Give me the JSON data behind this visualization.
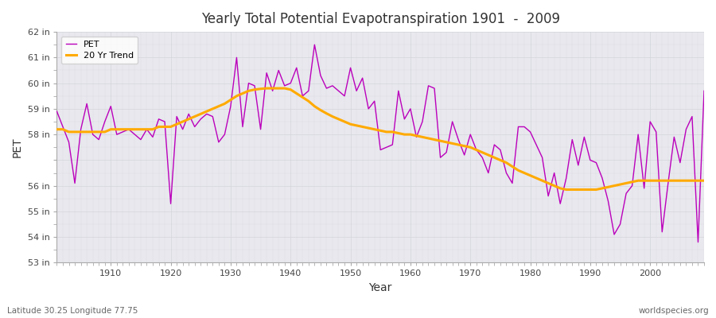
{
  "title": "Yearly Total Potential Evapotranspiration 1901  -  2009",
  "xlabel": "Year",
  "ylabel": "PET",
  "footnote_left": "Latitude 30.25 Longitude 77.75",
  "footnote_right": "worldspecies.org",
  "pet_color": "#bb00bb",
  "trend_color": "#ffaa00",
  "plot_bg_color": "#e8e8ee",
  "fig_bg_color": "#ffffff",
  "grid_color": "#d0d0d8",
  "ylim": [
    53,
    62
  ],
  "yticks": [
    53,
    54,
    55,
    56,
    57,
    58,
    59,
    60,
    61,
    62
  ],
  "ytick_labels": [
    "53 in",
    "54 in",
    "55 in",
    "56 in",
    "",
    "58 in",
    "59 in",
    "60 in",
    "61 in",
    "62 in"
  ],
  "xlim": [
    1901,
    2009
  ],
  "xticks": [
    1910,
    1920,
    1930,
    1940,
    1950,
    1960,
    1970,
    1980,
    1990,
    2000
  ],
  "years": [
    1901,
    1902,
    1903,
    1904,
    1905,
    1906,
    1907,
    1908,
    1909,
    1910,
    1911,
    1912,
    1913,
    1914,
    1915,
    1916,
    1917,
    1918,
    1919,
    1920,
    1921,
    1922,
    1923,
    1924,
    1925,
    1926,
    1927,
    1928,
    1929,
    1930,
    1931,
    1932,
    1933,
    1934,
    1935,
    1936,
    1937,
    1938,
    1939,
    1940,
    1941,
    1942,
    1943,
    1944,
    1945,
    1946,
    1947,
    1948,
    1949,
    1950,
    1951,
    1952,
    1953,
    1954,
    1955,
    1956,
    1957,
    1958,
    1959,
    1960,
    1961,
    1962,
    1963,
    1964,
    1965,
    1966,
    1967,
    1968,
    1969,
    1970,
    1971,
    1972,
    1973,
    1974,
    1975,
    1976,
    1977,
    1978,
    1979,
    1980,
    1981,
    1982,
    1983,
    1984,
    1985,
    1986,
    1987,
    1988,
    1989,
    1990,
    1991,
    1992,
    1993,
    1994,
    1995,
    1996,
    1997,
    1998,
    1999,
    2000,
    2001,
    2002,
    2003,
    2004,
    2005,
    2006,
    2007,
    2008,
    2009
  ],
  "pet": [
    58.9,
    58.3,
    57.7,
    56.1,
    58.2,
    59.2,
    58.0,
    57.8,
    58.5,
    59.1,
    58.0,
    58.1,
    58.2,
    58.0,
    57.8,
    58.2,
    57.9,
    58.6,
    58.5,
    55.3,
    58.7,
    58.2,
    58.8,
    58.3,
    58.6,
    58.8,
    58.7,
    57.7,
    58.0,
    59.1,
    61.0,
    58.3,
    60.0,
    59.9,
    58.2,
    60.4,
    59.7,
    60.5,
    59.9,
    60.0,
    60.6,
    59.5,
    59.7,
    61.5,
    60.3,
    59.8,
    59.9,
    59.7,
    59.5,
    60.6,
    59.7,
    60.2,
    59.0,
    59.3,
    57.4,
    57.5,
    57.6,
    59.7,
    58.6,
    59.0,
    57.9,
    58.5,
    59.9,
    59.8,
    57.1,
    57.3,
    58.5,
    57.8,
    57.2,
    58.0,
    57.4,
    57.1,
    56.5,
    57.6,
    57.4,
    56.5,
    56.1,
    58.3,
    58.3,
    58.1,
    57.6,
    57.1,
    55.6,
    56.5,
    55.3,
    56.3,
    57.8,
    56.8,
    57.9,
    57.0,
    56.9,
    56.3,
    55.4,
    54.1,
    54.5,
    55.7,
    56.0,
    58.0,
    55.9,
    58.5,
    58.1,
    54.2,
    56.1,
    57.9,
    56.9,
    58.2,
    58.7,
    53.8,
    59.7
  ],
  "trend": [
    58.2,
    58.2,
    58.1,
    58.1,
    58.1,
    58.1,
    58.1,
    58.1,
    58.1,
    58.2,
    58.2,
    58.2,
    58.2,
    58.2,
    58.2,
    58.2,
    58.2,
    58.3,
    58.3,
    58.3,
    58.4,
    58.5,
    58.6,
    58.7,
    58.8,
    58.9,
    59.0,
    59.1,
    59.2,
    59.35,
    59.5,
    59.6,
    59.7,
    59.75,
    59.78,
    59.8,
    59.8,
    59.8,
    59.8,
    59.75,
    59.6,
    59.45,
    59.3,
    59.1,
    58.95,
    58.82,
    58.7,
    58.6,
    58.5,
    58.4,
    58.35,
    58.3,
    58.25,
    58.2,
    58.15,
    58.1,
    58.1,
    58.05,
    58.0,
    58.0,
    57.95,
    57.9,
    57.85,
    57.8,
    57.75,
    57.7,
    57.65,
    57.6,
    57.55,
    57.5,
    57.4,
    57.3,
    57.2,
    57.1,
    57.0,
    56.9,
    56.75,
    56.6,
    56.5,
    56.4,
    56.3,
    56.2,
    56.1,
    56.0,
    55.9,
    55.85,
    55.85,
    55.85,
    55.85,
    55.85,
    55.85,
    55.9,
    55.95,
    56.0,
    56.05,
    56.1,
    56.15,
    56.2,
    56.2,
    56.2,
    56.2,
    56.2,
    56.2,
    56.2,
    56.2,
    56.2,
    56.2,
    56.2,
    56.2
  ]
}
